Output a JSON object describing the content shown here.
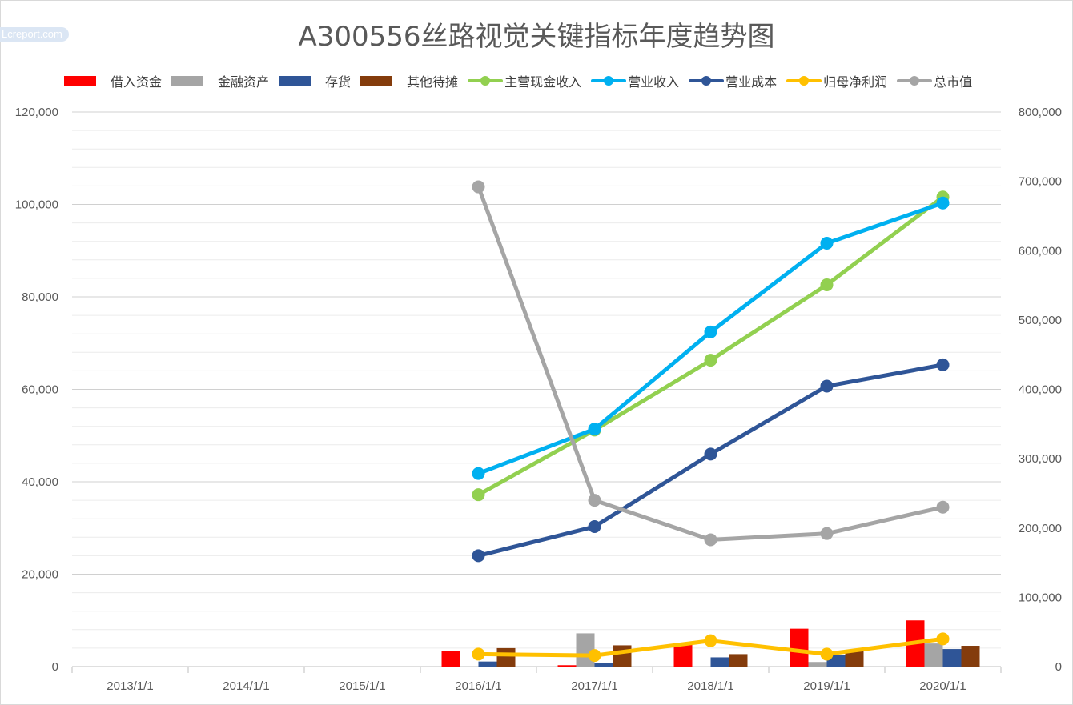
{
  "watermark": "Lcreport.com",
  "chart_data": {
    "type": "bar",
    "title": "A300556丝路视觉关键指标年度趋势图",
    "categories": [
      "2013/1/1",
      "2014/1/1",
      "2015/1/1",
      "2016/1/1",
      "2017/1/1",
      "2018/1/1",
      "2019/1/1",
      "2020/1/1"
    ],
    "y_left": {
      "lim": [
        0,
        120000
      ],
      "ticks": [
        "0",
        "20,000",
        "40,000",
        "60,000",
        "80,000",
        "100,000",
        "120,000"
      ]
    },
    "y_right": {
      "lim": [
        0,
        800000
      ],
      "ticks": [
        "0",
        "100,000",
        "200,000",
        "300,000",
        "400,000",
        "500,000",
        "600,000",
        "700,000",
        "800,000"
      ]
    },
    "grid": true,
    "legend_position": "top",
    "bar_series": [
      {
        "name": "借入资金",
        "color": "#ff0000",
        "values": [
          null,
          null,
          null,
          3400,
          300,
          4800,
          8200,
          10000
        ]
      },
      {
        "name": "金融资产",
        "color": "#a5a5a5",
        "values": [
          null,
          null,
          null,
          0,
          7200,
          0,
          1000,
          5000
        ]
      },
      {
        "name": "存货",
        "color": "#2f5597",
        "values": [
          null,
          null,
          null,
          1100,
          800,
          2000,
          2600,
          3800
        ]
      },
      {
        "name": "其他待摊",
        "color": "#843c0c",
        "values": [
          null,
          null,
          null,
          4000,
          4600,
          2700,
          3300,
          4500
        ]
      }
    ],
    "line_series": [
      {
        "name": "主营现金收入",
        "color": "#92d050",
        "axis": "left",
        "values": [
          null,
          null,
          null,
          37200,
          51200,
          66300,
          82600,
          101600
        ]
      },
      {
        "name": "营业收入",
        "color": "#00b0f0",
        "axis": "left",
        "values": [
          null,
          null,
          null,
          41800,
          51400,
          72400,
          91600,
          100300
        ]
      },
      {
        "name": "营业成本",
        "color": "#2f5597",
        "axis": "left",
        "values": [
          null,
          null,
          null,
          24000,
          30300,
          46000,
          60700,
          65300
        ]
      },
      {
        "name": "归母净利润",
        "color": "#ffc000",
        "axis": "left",
        "values": [
          null,
          null,
          null,
          2700,
          2400,
          5600,
          2700,
          6000
        ]
      },
      {
        "name": "总市值",
        "color": "#a5a5a5",
        "axis": "right",
        "values": [
          null,
          null,
          null,
          692000,
          240000,
          183000,
          192000,
          230000
        ]
      }
    ]
  }
}
